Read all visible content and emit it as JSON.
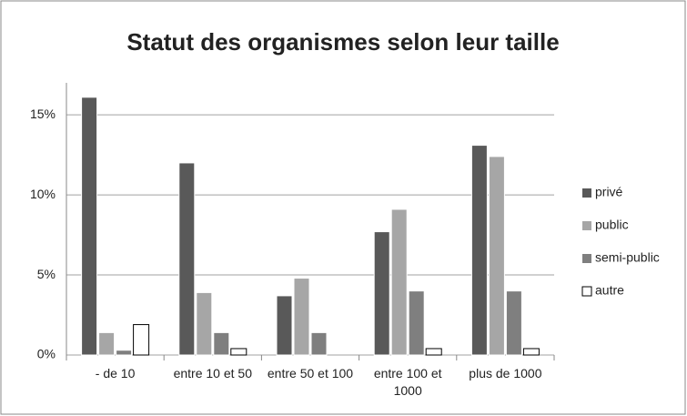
{
  "chart_data": {
    "type": "bar",
    "title": "Statut des organismes selon leur taille",
    "categories": [
      "- de 10",
      "entre 10 et 50",
      "entre 50 et 100",
      "entre 100 et 1000",
      "plus de 1000"
    ],
    "series": [
      {
        "name": "privé",
        "color": "#595959",
        "values": [
          16.1,
          12.0,
          3.7,
          7.7,
          13.1
        ]
      },
      {
        "name": "public",
        "color": "#a6a6a6",
        "values": [
          1.4,
          3.9,
          4.8,
          9.1,
          12.4
        ]
      },
      {
        "name": "semi-public",
        "color": "#7f7f7f",
        "values": [
          0.3,
          1.4,
          1.4,
          4.0,
          4.0
        ]
      },
      {
        "name": "autre",
        "color": "#ffffff",
        "values": [
          1.9,
          0.4,
          0,
          0.4,
          0.4
        ]
      }
    ],
    "ylim": [
      0,
      17
    ],
    "yticks": [
      {
        "value": 0,
        "label": "0%"
      },
      {
        "value": 5,
        "label": "5%"
      },
      {
        "value": 10,
        "label": "10%"
      },
      {
        "value": 15,
        "label": "15%"
      }
    ],
    "grid": true,
    "legend": "right"
  }
}
